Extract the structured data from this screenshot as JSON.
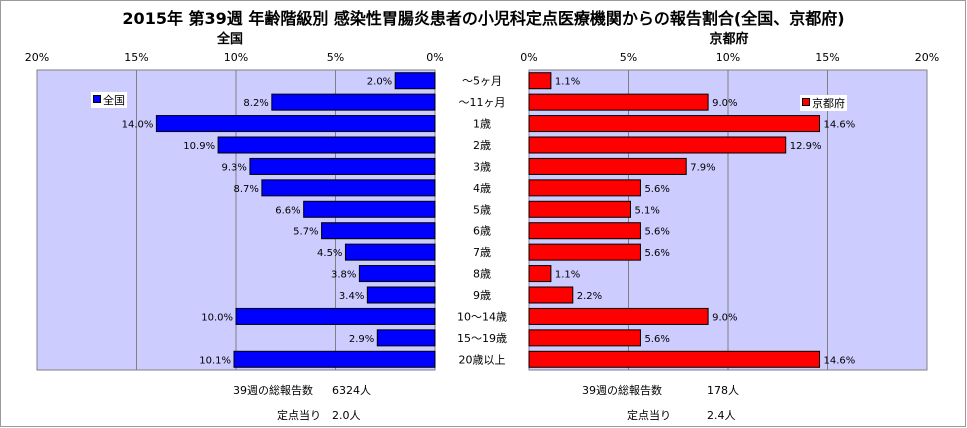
{
  "title": "2015年 第39週 年齢階級別 感染性胃腸炎患者の小児科定点医療機関からの報告割合(全国、京都府)",
  "colors": {
    "zenkoku": "#0000ff",
    "kyoto": "#ff0000",
    "plot_bg": "#ccccff"
  },
  "chart_data": [
    {
      "type": "bar",
      "orientation": "horizontal",
      "direction": "right-to-left",
      "title": "全国",
      "legend": "全国",
      "legend_position": "top-left",
      "categories": [
        "～5ヶ月",
        "～11ヶ月",
        "1歳",
        "2歳",
        "3歳",
        "4歳",
        "5歳",
        "6歳",
        "7歳",
        "8歳",
        "9歳",
        "10～14歳",
        "15～19歳",
        "20歳以上"
      ],
      "values": [
        2.0,
        8.2,
        14.0,
        10.9,
        9.3,
        8.7,
        6.6,
        5.7,
        4.5,
        3.8,
        3.4,
        10.0,
        2.9,
        10.1
      ],
      "data_labels": [
        "2.0%",
        "8.2%",
        "14.0%",
        "10.9%",
        "9.3%",
        "8.7%",
        "6.6%",
        "5.7%",
        "4.5%",
        "3.8%",
        "3.4%",
        "10.0%",
        "2.9%",
        "10.1%"
      ],
      "xlim": [
        0,
        20
      ],
      "ticks": [
        "20%",
        "15%",
        "10%",
        "5%",
        "0%"
      ],
      "grid": true
    },
    {
      "type": "bar",
      "orientation": "horizontal",
      "direction": "left-to-right",
      "title": "京都府",
      "legend": "京都府",
      "legend_position": "top-right",
      "categories": [
        "～5ヶ月",
        "～11ヶ月",
        "1歳",
        "2歳",
        "3歳",
        "4歳",
        "5歳",
        "6歳",
        "7歳",
        "8歳",
        "9歳",
        "10～14歳",
        "15～19歳",
        "20歳以上"
      ],
      "values": [
        1.1,
        9.0,
        14.6,
        12.9,
        7.9,
        5.6,
        5.1,
        5.6,
        5.6,
        1.1,
        2.2,
        9.0,
        5.6,
        14.6
      ],
      "data_labels": [
        "1.1%",
        "9.0%",
        "14.6%",
        "12.9%",
        "7.9%",
        "5.6%",
        "5.1%",
        "5.6%",
        "5.6%",
        "1.1%",
        "2.2%",
        "9.0%",
        "5.6%",
        "14.6%"
      ],
      "xlim": [
        0,
        20
      ],
      "ticks": [
        "0%",
        "5%",
        "10%",
        "15%",
        "20%"
      ],
      "grid": true
    }
  ],
  "footer": {
    "zenkoku": {
      "total_label": "39週の総報告数",
      "total_value": "6324人",
      "per_label": "定点当り",
      "per_value": "2.0人"
    },
    "kyoto": {
      "total_label": "39週の総報告数",
      "total_value": "178人",
      "per_label": "定点当り",
      "per_value": "2.4人"
    }
  }
}
